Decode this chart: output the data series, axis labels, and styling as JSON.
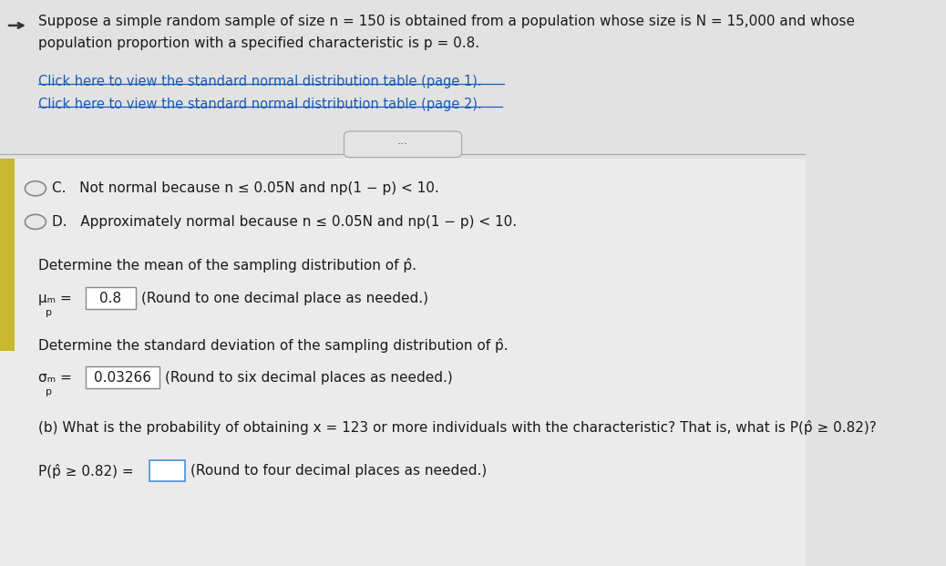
{
  "bg_color_top": "#e2e2e2",
  "bg_color_bottom": "#ebebeb",
  "bg_color_yellow_strip": "#c8b830",
  "title_line1": "Suppose a simple random sample of size n = 150 is obtained from a population whose size is N = 15,000 and whose",
  "title_line2": "population proportion with a specified characteristic is p = 0.8.",
  "link1": "Click here to view the standard normal distribution table (page 1).",
  "link2": "Click here to view the standard normal distribution table (page 2).",
  "option_c": "C.   Not normal because n ≤ 0.05N and np(1 − p) < 10.",
  "option_d": "D.   Approximately normal because n ≤ 0.05N and np(1 − p) < 10.",
  "mean_question": "Determine the mean of the sampling distribution of p̂.",
  "mean_value": "0.8",
  "mean_note": "(Round to one decimal place as needed.)",
  "sd_question": "Determine the standard deviation of the sampling distribution of p̂.",
  "sd_value": "0.03266",
  "sd_note": "(Round to six decimal places as needed.)",
  "part_b": "(b) What is the probability of obtaining x = 123 or more individuals with the characteristic? That is, what is P(p̂ ≥ 0.82)?",
  "prob_label": "P(p̂ ≥ 0.82) = ",
  "prob_note": "(Round to four decimal places as needed.)",
  "text_color": "#1a1a1a",
  "link_color": "#1a5cb5",
  "box_fill": "#ffffff",
  "box_border": "#888888"
}
